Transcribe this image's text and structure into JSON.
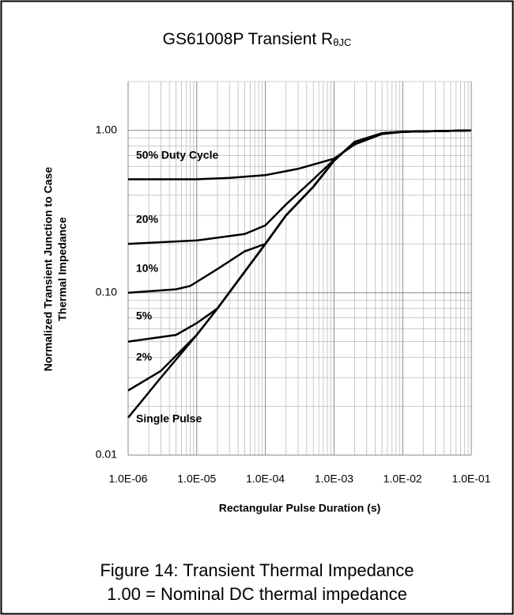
{
  "chart_data": {
    "type": "line",
    "title": "GS61008P Transient R",
    "title_subscript": "θJC",
    "x_label": "Rectangular Pulse Duration (s)",
    "y_label": [
      "Normalized Transient Junction to Case",
      "Thermal  Impedance"
    ],
    "caption": [
      "Figure 14: Transient Thermal Impedance",
      "1.00 = Nominal DC thermal impedance"
    ],
    "x_log": true,
    "y_log": true,
    "grid": true,
    "xlim": [
      1e-06,
      0.1
    ],
    "ylim": [
      0.01,
      2
    ],
    "xticks": [
      {
        "value": 1e-06,
        "label": "1.0E-06"
      },
      {
        "value": 1e-05,
        "label": "1.0E-05"
      },
      {
        "value": 0.0001,
        "label": "1.0E-04"
      },
      {
        "value": 0.001,
        "label": "1.0E-03"
      },
      {
        "value": 0.01,
        "label": "1.0E-02"
      },
      {
        "value": 0.1,
        "label": "1.0E-01"
      }
    ],
    "yticks": [
      {
        "value": 0.01,
        "label": "0.01"
      },
      {
        "value": 0.1,
        "label": "0.10"
      },
      {
        "value": 1,
        "label": "1.00"
      }
    ],
    "series": [
      {
        "name": "50% Duty Cycle",
        "color": "#000000",
        "x": [
          1e-06,
          5e-06,
          1e-05,
          3e-05,
          0.0001,
          0.0003,
          0.001,
          0.002,
          0.005,
          0.01,
          0.1
        ],
        "values": [
          0.5,
          0.5,
          0.5,
          0.51,
          0.53,
          0.58,
          0.67,
          0.82,
          0.95,
          0.98,
          1.0
        ]
      },
      {
        "name": "20%",
        "color": "#000000",
        "x": [
          1e-06,
          1e-05,
          5e-05,
          0.0001,
          0.0002,
          0.0005,
          0.001,
          0.002,
          0.005,
          0.01,
          0.1
        ],
        "values": [
          0.2,
          0.21,
          0.23,
          0.26,
          0.35,
          0.5,
          0.66,
          0.84,
          0.95,
          0.98,
          1.0
        ]
      },
      {
        "name": "10%",
        "color": "#000000",
        "x": [
          1e-06,
          5e-06,
          8e-06,
          2e-05,
          5e-05,
          0.0001,
          0.0002,
          0.0005,
          0.001,
          0.002,
          0.005,
          0.01,
          0.1
        ],
        "values": [
          0.1,
          0.105,
          0.11,
          0.14,
          0.18,
          0.2,
          0.3,
          0.45,
          0.65,
          0.85,
          0.96,
          0.98,
          1.0
        ]
      },
      {
        "name": "5%",
        "color": "#000000",
        "x": [
          1e-06,
          5e-06,
          1e-05,
          2e-05,
          0.0001,
          0.0002,
          0.0005,
          0.001,
          0.002,
          0.005,
          0.01,
          0.1
        ],
        "values": [
          0.05,
          0.055,
          0.065,
          0.08,
          0.2,
          0.3,
          0.45,
          0.65,
          0.85,
          0.96,
          0.98,
          1.0
        ]
      },
      {
        "name": "2%",
        "color": "#000000",
        "x": [
          1e-06,
          3e-06,
          1e-05,
          2e-05,
          0.0001,
          0.0002,
          0.0005,
          0.001,
          0.002,
          0.005,
          0.01,
          0.1
        ],
        "values": [
          0.025,
          0.033,
          0.055,
          0.08,
          0.2,
          0.3,
          0.45,
          0.65,
          0.85,
          0.96,
          0.98,
          1.0
        ]
      },
      {
        "name": "Single Pulse",
        "color": "#000000",
        "x": [
          1e-06,
          3e-06,
          1e-05,
          2e-05,
          0.0001,
          0.0002,
          0.0005,
          0.001,
          0.002,
          0.005,
          0.01,
          0.1
        ],
        "values": [
          0.017,
          0.03,
          0.055,
          0.08,
          0.2,
          0.3,
          0.45,
          0.65,
          0.85,
          0.96,
          0.98,
          1.0
        ]
      }
    ]
  }
}
